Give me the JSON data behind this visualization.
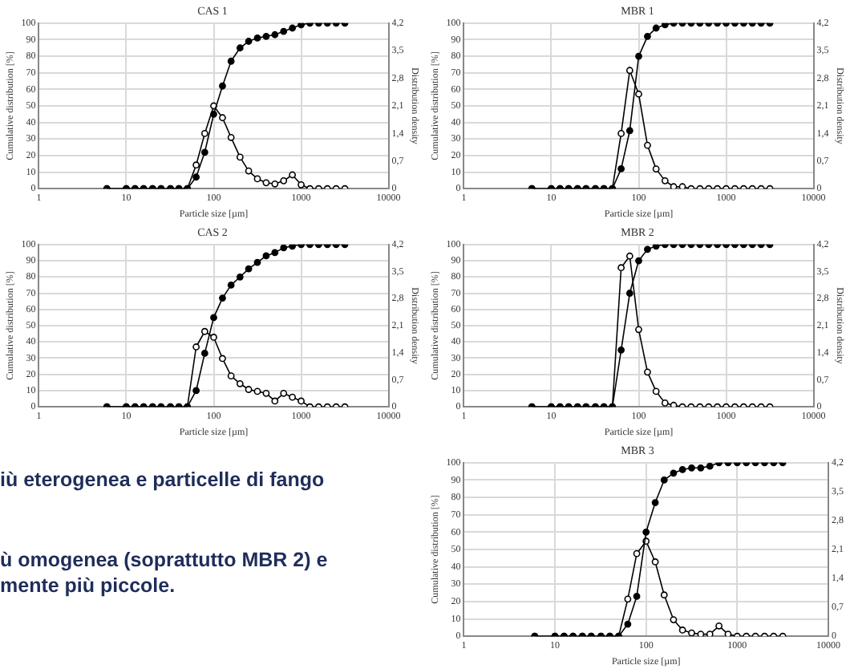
{
  "chart_data": [
    {
      "type": "line",
      "title": "CAS 1",
      "xlabel": "Particle size [µm]",
      "ylabel": "Cumulative distribution [%]",
      "y2label": "Distribution density",
      "log": "x",
      "grid": true,
      "marker": "circle",
      "legend": false,
      "x": [
        6,
        10,
        12.6,
        15.8,
        20,
        25,
        32,
        40,
        50,
        63,
        79,
        100,
        126,
        158,
        200,
        251,
        316,
        398,
        501,
        631,
        794,
        1000,
        1259,
        1585,
        1995,
        2512,
        3162
      ],
      "xlim": [
        1,
        10000
      ],
      "xticks": [
        1,
        10,
        100,
        1000,
        10000
      ],
      "ylim": [
        0,
        100
      ],
      "yticks": [
        0,
        10,
        20,
        30,
        40,
        50,
        60,
        70,
        80,
        90,
        100
      ],
      "y2lim": [
        0,
        4.2
      ],
      "y2ticks": [
        {
          "value": 0,
          "label": "0"
        },
        {
          "value": 0.7,
          "label": "0,7"
        },
        {
          "value": 1.4,
          "label": "1,4"
        },
        {
          "value": 2.1,
          "label": "2,1"
        },
        {
          "value": 2.8,
          "label": "2,8"
        },
        {
          "value": 3.5,
          "label": "3,5"
        },
        {
          "value": 4.2,
          "label": "4,2"
        }
      ],
      "series": [
        {
          "color": "#000000",
          "values": [
            0,
            0,
            0,
            0,
            0,
            0,
            0,
            0,
            0,
            7,
            22,
            45,
            62,
            77,
            85,
            89,
            91,
            92,
            93,
            95,
            97,
            99,
            100,
            100,
            100,
            100,
            100
          ]
        },
        {
          "color": "#000000",
          "axis": "y2",
          "values": [
            0,
            0,
            0,
            0,
            0,
            0,
            0,
            0,
            0,
            0.6,
            1.4,
            2.1,
            1.8,
            1.3,
            0.8,
            0.45,
            0.25,
            0.15,
            0.12,
            0.2,
            0.35,
            0.1,
            0,
            0,
            0,
            0,
            0
          ]
        }
      ]
    },
    {
      "type": "line",
      "title": "MBR 1",
      "xlabel": "Particle size [µm]",
      "ylabel": "Cumulative distribution [%]",
      "y2label": "Distribution density",
      "log": "x",
      "grid": true,
      "marker": "circle",
      "legend": false,
      "x": [
        6,
        10,
        12.6,
        15.8,
        20,
        25,
        32,
        40,
        50,
        63,
        79,
        100,
        126,
        158,
        200,
        251,
        316,
        398,
        501,
        631,
        794,
        1000,
        1259,
        1585,
        1995,
        2512,
        3162
      ],
      "xlim": [
        1,
        10000
      ],
      "xticks": [
        1,
        10,
        100,
        1000,
        10000
      ],
      "ylim": [
        0,
        100
      ],
      "yticks": [
        0,
        10,
        20,
        30,
        40,
        50,
        60,
        70,
        80,
        90,
        100
      ],
      "y2lim": [
        0,
        4.2
      ],
      "y2ticks": [
        {
          "value": 0,
          "label": "0"
        },
        {
          "value": 0.7,
          "label": "0,7"
        },
        {
          "value": 1.4,
          "label": "1,4"
        },
        {
          "value": 2.1,
          "label": "2,1"
        },
        {
          "value": 2.8,
          "label": "2,8"
        },
        {
          "value": 3.5,
          "label": "3,5"
        },
        {
          "value": 4.2,
          "label": "4,2"
        }
      ],
      "series": [
        {
          "color": "#000000",
          "values": [
            0,
            0,
            0,
            0,
            0,
            0,
            0,
            0,
            0,
            12,
            35,
            80,
            92,
            97,
            99,
            100,
            100,
            100,
            100,
            100,
            100,
            100,
            100,
            100,
            100,
            100,
            100
          ]
        },
        {
          "color": "#000000",
          "axis": "y2",
          "values": [
            0,
            0,
            0,
            0,
            0,
            0,
            0,
            0,
            0,
            1.4,
            3.0,
            2.4,
            1.1,
            0.5,
            0.2,
            0.05,
            0.05,
            0,
            0,
            0,
            0,
            0,
            0,
            0,
            0,
            0,
            0
          ]
        }
      ]
    },
    {
      "type": "line",
      "title": "CAS 2",
      "xlabel": "Particle size [µm]",
      "ylabel": "Cumulative distribution [%]",
      "y2label": "Distribution density",
      "log": "x",
      "grid": true,
      "marker": "circle",
      "legend": false,
      "x": [
        6,
        10,
        12.6,
        15.8,
        20,
        25,
        32,
        40,
        50,
        63,
        79,
        100,
        126,
        158,
        200,
        251,
        316,
        398,
        501,
        631,
        794,
        1000,
        1259,
        1585,
        1995,
        2512,
        3162
      ],
      "xlim": [
        1,
        10000
      ],
      "xticks": [
        1,
        10,
        100,
        1000,
        10000
      ],
      "ylim": [
        0,
        100
      ],
      "yticks": [
        0,
        10,
        20,
        30,
        40,
        50,
        60,
        70,
        80,
        90,
        100
      ],
      "y2lim": [
        0,
        4.2
      ],
      "y2ticks": [
        {
          "value": 0,
          "label": "0"
        },
        {
          "value": 0.7,
          "label": "0,7"
        },
        {
          "value": 1.4,
          "label": "1,4"
        },
        {
          "value": 2.1,
          "label": "2,1"
        },
        {
          "value": 2.8,
          "label": "2,8"
        },
        {
          "value": 3.5,
          "label": "3,5"
        },
        {
          "value": 4.2,
          "label": "4,2"
        }
      ],
      "series": [
        {
          "color": "#000000",
          "values": [
            0,
            0,
            0,
            0,
            0,
            0,
            0,
            0,
            0,
            10,
            33,
            55,
            67,
            75,
            80,
            85,
            89,
            93,
            95,
            98,
            99,
            100,
            100,
            100,
            100,
            100,
            100
          ]
        },
        {
          "color": "#000000",
          "axis": "y2",
          "values": [
            0,
            0,
            0,
            0,
            0,
            0,
            0,
            0,
            0,
            1.55,
            1.95,
            1.8,
            1.25,
            0.8,
            0.6,
            0.45,
            0.4,
            0.35,
            0.15,
            0.35,
            0.25,
            0.15,
            0,
            0,
            0,
            0,
            0
          ]
        }
      ]
    },
    {
      "type": "line",
      "title": "MBR 2",
      "xlabel": "Particle size [µm]",
      "ylabel": "Cumulative distribution [%]",
      "y2label": "Distribution density",
      "log": "x",
      "grid": true,
      "marker": "circle",
      "legend": false,
      "x": [
        6,
        10,
        12.6,
        15.8,
        20,
        25,
        32,
        40,
        50,
        63,
        79,
        100,
        126,
        158,
        200,
        251,
        316,
        398,
        501,
        631,
        794,
        1000,
        1259,
        1585,
        1995,
        2512,
        3162
      ],
      "xlim": [
        1,
        10000
      ],
      "xticks": [
        1,
        10,
        100,
        1000,
        10000
      ],
      "ylim": [
        0,
        100
      ],
      "yticks": [
        0,
        10,
        20,
        30,
        40,
        50,
        60,
        70,
        80,
        90,
        100
      ],
      "y2lim": [
        0,
        4.2
      ],
      "y2ticks": [
        {
          "value": 0,
          "label": "0"
        },
        {
          "value": 0.7,
          "label": "0,7"
        },
        {
          "value": 1.4,
          "label": "1,4"
        },
        {
          "value": 2.1,
          "label": "2,1"
        },
        {
          "value": 2.8,
          "label": "2,8"
        },
        {
          "value": 3.5,
          "label": "3,5"
        },
        {
          "value": 4.2,
          "label": "4,2"
        }
      ],
      "series": [
        {
          "color": "#000000",
          "values": [
            0,
            0,
            0,
            0,
            0,
            0,
            0,
            0,
            0,
            35,
            70,
            90,
            97,
            99,
            100,
            100,
            100,
            100,
            100,
            100,
            100,
            100,
            100,
            100,
            100,
            100,
            100
          ]
        },
        {
          "color": "#000000",
          "axis": "y2",
          "values": [
            0,
            0,
            0,
            0,
            0,
            0,
            0,
            0,
            0,
            3.6,
            3.9,
            2.0,
            0.9,
            0.4,
            0.1,
            0.04,
            0,
            0,
            0,
            0,
            0,
            0,
            0,
            0,
            0,
            0,
            0
          ]
        }
      ]
    },
    {
      "type": "line",
      "title": "MBR 3",
      "xlabel": "Particle size [µm]",
      "ylabel": "Cumulative distribution [%]",
      "log": "x",
      "grid": true,
      "marker": "circle",
      "legend": false,
      "x": [
        6,
        10,
        12.6,
        15.8,
        20,
        25,
        32,
        40,
        50,
        63,
        79,
        100,
        126,
        158,
        200,
        251,
        316,
        398,
        501,
        631,
        794,
        1000,
        1259,
        1585,
        1995,
        2512,
        3162
      ],
      "xlim": [
        1,
        10000
      ],
      "xticks": [
        1,
        10,
        100,
        1000,
        10000
      ],
      "ylim": [
        0,
        100
      ],
      "yticks": [
        0,
        10,
        20,
        30,
        40,
        50,
        60,
        70,
        80,
        90,
        100
      ],
      "y2lim": [
        0,
        4.2
      ],
      "y2ticks": [
        {
          "value": 0,
          "label": "0"
        },
        {
          "value": 0.7,
          "label": "0,7"
        },
        {
          "value": 1.4,
          "label": "1,4"
        },
        {
          "value": 2.1,
          "label": "2,1"
        },
        {
          "value": 2.8,
          "label": "2,8"
        },
        {
          "value": 3.5,
          "label": "3,5"
        },
        {
          "value": 4.2,
          "label": "4,2"
        }
      ],
      "series": [
        {
          "color": "#000000",
          "values": [
            0,
            0,
            0,
            0,
            0,
            0,
            0,
            0,
            0,
            7,
            23,
            60,
            77,
            90,
            94,
            96,
            97,
            97,
            98,
            100,
            100,
            100,
            100,
            100,
            100,
            100,
            100
          ]
        },
        {
          "color": "#000000",
          "axis": "y2",
          "values": [
            0,
            0,
            0,
            0,
            0,
            0,
            0,
            0,
            0,
            0.9,
            2.0,
            2.3,
            1.8,
            1.0,
            0.4,
            0.15,
            0.08,
            0.05,
            0.05,
            0.25,
            0.05,
            0,
            0,
            0,
            0,
            0,
            0
          ]
        }
      ]
    },
    {
      "type": "other",
      "annotations": [
        "iù eterogenea e particelle di fango",
        "ù omogenea (soprattutto MBR 2) e",
        "mente più piccole."
      ]
    }
  ]
}
